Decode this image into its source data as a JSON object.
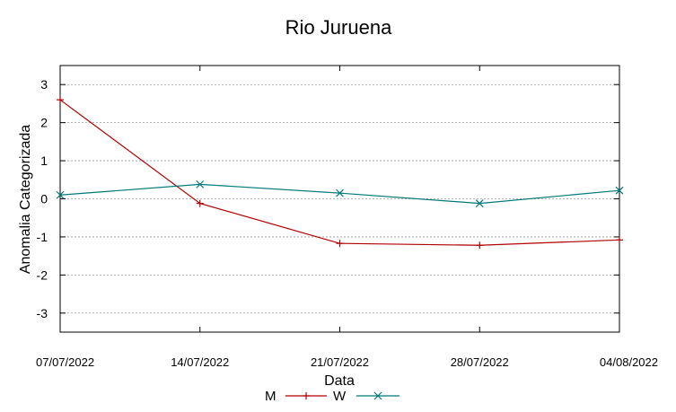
{
  "chart_data": {
    "type": "line",
    "title": "Rio Juruena",
    "xlabel": "Data",
    "ylabel": "Anomalia Categorizada",
    "categories": [
      "07/07/2022",
      "14/07/2022",
      "21/07/2022",
      "28/07/2022",
      "04/08/2022"
    ],
    "y_ticks": [
      3,
      2,
      1,
      0,
      -1,
      -2,
      -3
    ],
    "ylim": [
      -3.5,
      3.5
    ],
    "grid": true,
    "legend_position": "bottom-center",
    "series": [
      {
        "name": "M",
        "color": "#b00000",
        "marker": "plus",
        "values": [
          2.6,
          -0.12,
          -1.17,
          -1.22,
          -1.08
        ]
      },
      {
        "name": "W",
        "color": "#007878",
        "marker": "x",
        "values": [
          0.1,
          0.38,
          0.15,
          -0.12,
          0.22
        ]
      }
    ]
  }
}
